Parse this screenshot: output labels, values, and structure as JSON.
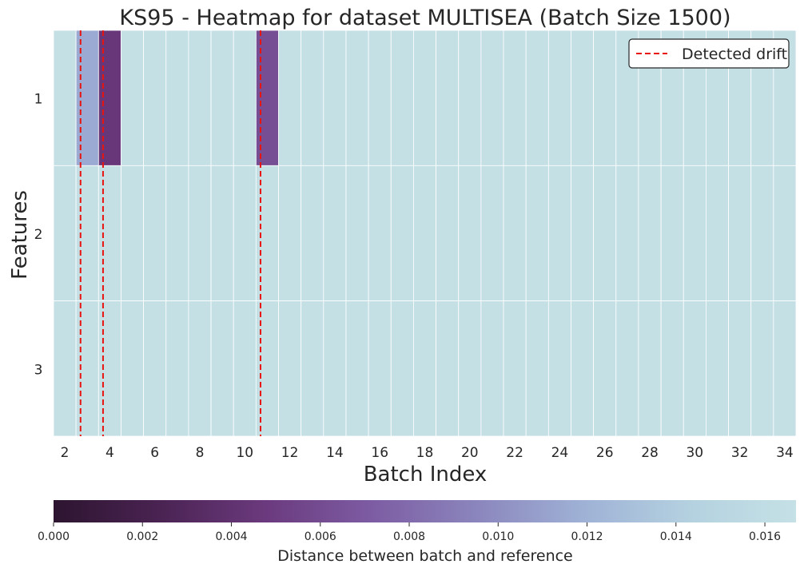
{
  "chart_data": {
    "type": "heatmap",
    "title": "KS95 - Heatmap for dataset MULTISEA (Batch Size 1500)",
    "xlabel": "Batch Index",
    "ylabel": "Features",
    "x": [
      2,
      3,
      4,
      5,
      6,
      7,
      8,
      9,
      10,
      11,
      12,
      13,
      14,
      15,
      16,
      17,
      18,
      19,
      20,
      21,
      22,
      23,
      24,
      25,
      26,
      27,
      28,
      29,
      30,
      31,
      32,
      33,
      34
    ],
    "x_ticks": [
      "2",
      "4",
      "6",
      "8",
      "10",
      "12",
      "14",
      "16",
      "18",
      "20",
      "22",
      "24",
      "26",
      "28",
      "30",
      "32",
      "34"
    ],
    "y_labels": [
      "1",
      "2",
      "3"
    ],
    "values": [
      [
        0.0165,
        0.0115,
        0.0045,
        0.0165,
        0.0165,
        0.0165,
        0.0165,
        0.0165,
        0.0165,
        0.0062,
        0.0165,
        0.0165,
        0.0165,
        0.0165,
        0.0165,
        0.0165,
        0.0165,
        0.0165,
        0.0165,
        0.0165,
        0.0165,
        0.0165,
        0.0165,
        0.0165,
        0.0165,
        0.0165,
        0.0165,
        0.0165,
        0.0165,
        0.0165,
        0.0165,
        0.0165,
        0.0165
      ],
      [
        0.0165,
        0.0165,
        0.0165,
        0.0165,
        0.0165,
        0.0165,
        0.0165,
        0.0165,
        0.0165,
        0.0165,
        0.0165,
        0.0165,
        0.0165,
        0.0165,
        0.0165,
        0.0165,
        0.0165,
        0.0165,
        0.0165,
        0.0165,
        0.0165,
        0.0165,
        0.0165,
        0.0165,
        0.0165,
        0.0165,
        0.0165,
        0.0165,
        0.0165,
        0.0165,
        0.0165,
        0.0165,
        0.0165
      ],
      [
        0.0165,
        0.0165,
        0.0165,
        0.0165,
        0.0165,
        0.0165,
        0.0165,
        0.0165,
        0.0165,
        0.0165,
        0.0165,
        0.0165,
        0.0165,
        0.0165,
        0.0165,
        0.0165,
        0.0165,
        0.0165,
        0.0165,
        0.0165,
        0.0165,
        0.0165,
        0.0165,
        0.0165,
        0.0165,
        0.0165,
        0.0165,
        0.0165,
        0.0165,
        0.0165,
        0.0165,
        0.0165,
        0.0165
      ]
    ],
    "drift_lines": [
      2.7,
      3.7,
      10.7
    ],
    "legend": {
      "label": "Detected drift",
      "color": "#e8140f",
      "placement": "top-right"
    },
    "colorbar": {
      "label": "Distance between batch and reference",
      "vmin": 0,
      "vmax": 0.0167,
      "ticks": [
        "0.000",
        "0.002",
        "0.004",
        "0.006",
        "0.008",
        "0.010",
        "0.012",
        "0.014",
        "0.016"
      ],
      "colors": [
        "#2d1530",
        "#4a2352",
        "#6b3a7e",
        "#7d5ca3",
        "#8b86bd",
        "#9fb2d6",
        "#b4d1e0",
        "#c5e1e6"
      ]
    },
    "grid": true
  }
}
